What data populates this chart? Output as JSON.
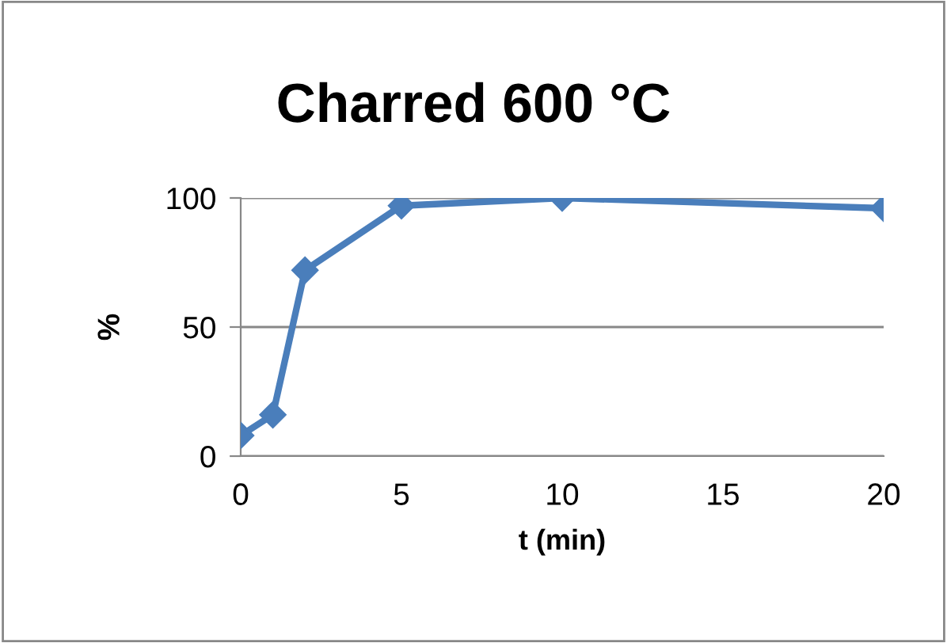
{
  "chart_data": {
    "type": "line",
    "title": "Charred 600 °C",
    "xlabel": "t (min)",
    "ylabel": "%",
    "x": [
      0,
      1,
      2,
      5,
      10,
      20
    ],
    "series": [
      {
        "color": "#4a7ebb",
        "values": [
          8,
          16,
          72,
          97,
          100,
          96
        ]
      }
    ],
    "xlim": [
      0,
      20
    ],
    "xticks": [
      0,
      5,
      10,
      15,
      20
    ],
    "ylim": [
      0,
      100
    ],
    "yticks": [
      0,
      50,
      100
    ],
    "grid": "y",
    "marker": "diamond",
    "line_style": "solid",
    "legend": false
  }
}
